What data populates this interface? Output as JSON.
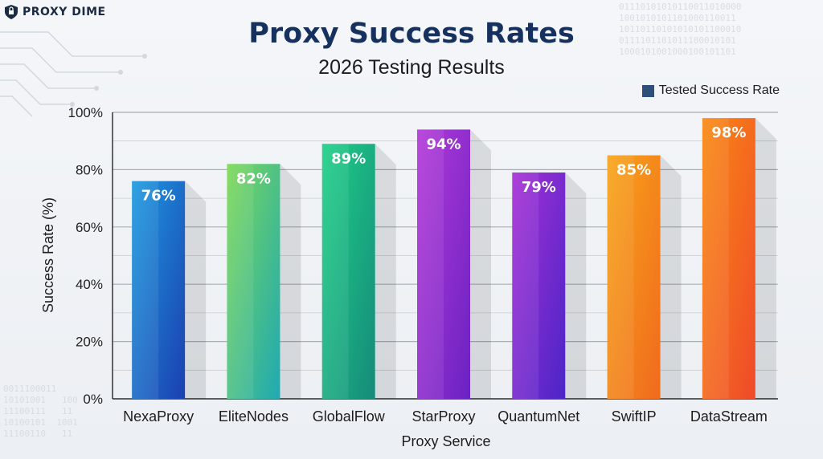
{
  "brand": {
    "name": "PROXY DIME",
    "logo_icon": "shield-logo-icon"
  },
  "chart_data": {
    "type": "bar",
    "title": "Proxy Success Rates",
    "subtitle": "2026 Testing Results",
    "xlabel": "Proxy Service",
    "ylabel": "Success Rate (%)",
    "ylim": [
      0,
      100
    ],
    "yticks": [
      "0%",
      "20%",
      "40%",
      "60%",
      "80%",
      "100%"
    ],
    "legend": {
      "position": "top-right",
      "entries": [
        "Tested Success Rate"
      ]
    },
    "grid": true,
    "categories": [
      "NexaProxy",
      "EliteNodes",
      "GlobalFlow",
      "StarProxy",
      "QuantumNet",
      "SwiftIP",
      "DataStream"
    ],
    "series": [
      {
        "name": "Tested Success Rate",
        "values": [
          76,
          82,
          89,
          94,
          79,
          85,
          98
        ],
        "labels": [
          "76%",
          "82%",
          "89%",
          "94%",
          "79%",
          "85%",
          "98%"
        ]
      }
    ],
    "colors": [
      [
        "#1e9be0",
        "#1b3fb0"
      ],
      [
        "#7ed957",
        "#1fa9b3"
      ],
      [
        "#1fd088",
        "#168a7a"
      ],
      [
        "#b43ad9",
        "#6a22c2"
      ],
      [
        "#a630d6",
        "#4b25c6"
      ],
      [
        "#f8a519",
        "#f06a1e"
      ],
      [
        "#f98a12",
        "#ef4a2b"
      ]
    ]
  }
}
